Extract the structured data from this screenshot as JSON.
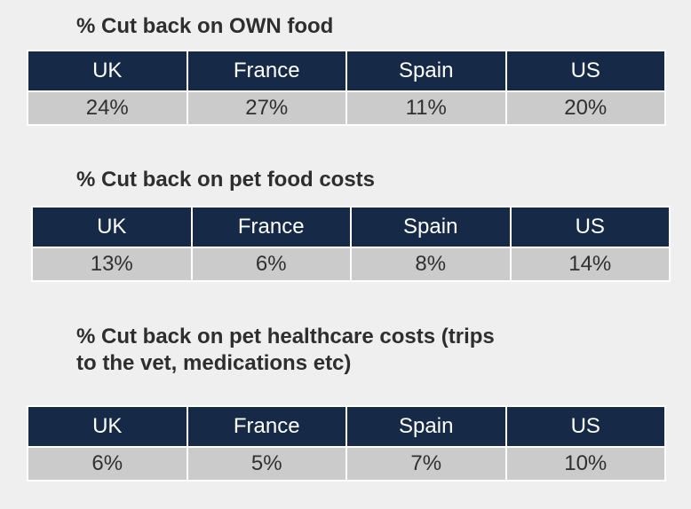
{
  "chart_data": [
    {
      "type": "table",
      "title": "% Cut back on OWN food",
      "categories": [
        "UK",
        "France",
        "Spain",
        "US"
      ],
      "values": [
        "24%",
        "27%",
        "11%",
        "20%"
      ]
    },
    {
      "type": "table",
      "title": "% Cut back on pet food costs",
      "categories": [
        "UK",
        "France",
        "Spain",
        "US"
      ],
      "values": [
        "13%",
        "6%",
        "8%",
        "14%"
      ]
    },
    {
      "type": "table",
      "title": "% Cut back on pet healthcare costs (trips\nto the vet, medications etc)",
      "categories": [
        "UK",
        "France",
        "Spain",
        "US"
      ],
      "values": [
        "6%",
        "5%",
        "7%",
        "10%"
      ]
    }
  ],
  "colors": {
    "header_bg": "#162a47",
    "header_text": "#ffffff",
    "value_bg": "#cbcbcb",
    "value_text": "#303030",
    "page_bg": "#efefef"
  }
}
